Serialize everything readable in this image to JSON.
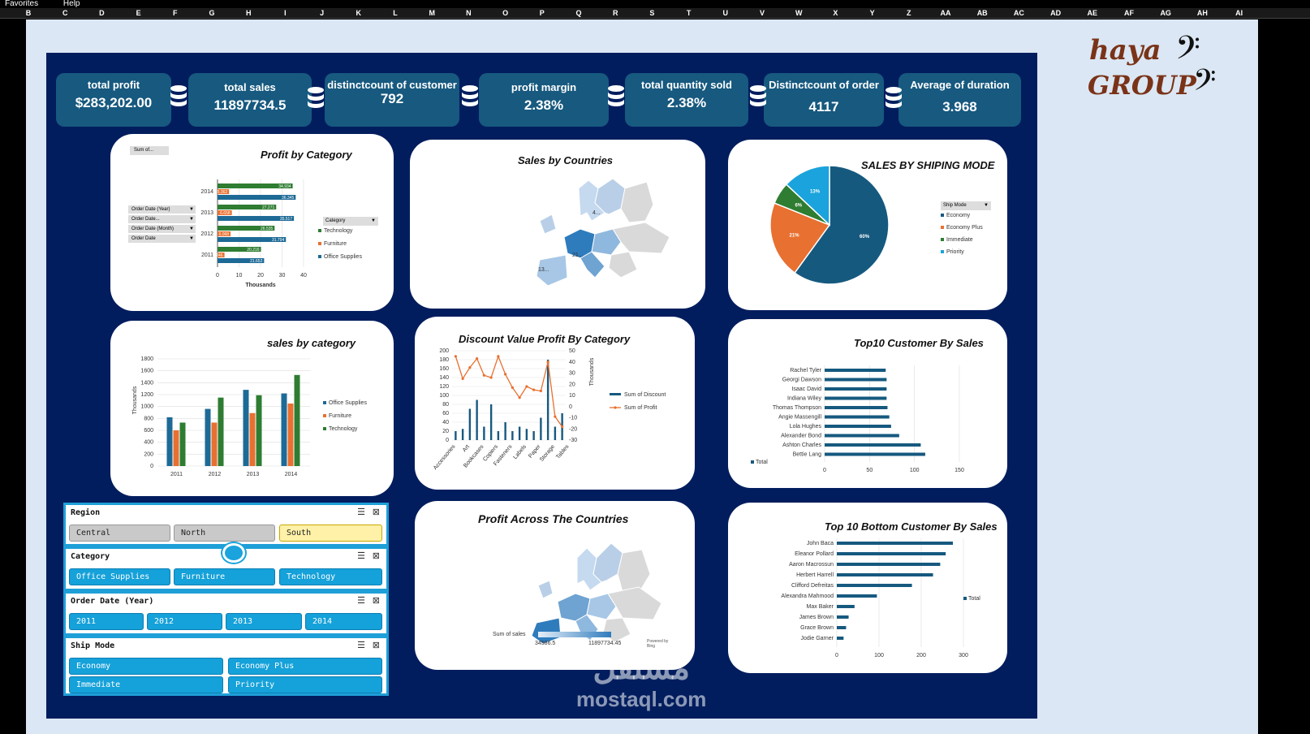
{
  "menu": {
    "favorites": "Favorites",
    "help": "Help"
  },
  "columns": [
    "B",
    "C",
    "D",
    "E",
    "F",
    "G",
    "H",
    "I",
    "J",
    "K",
    "L",
    "M",
    "N",
    "O",
    "P",
    "Q",
    "R",
    "S",
    "T",
    "U",
    "V",
    "W",
    "X",
    "Y",
    "Z",
    "AA",
    "AB",
    "AC",
    "AD",
    "AE",
    "AF",
    "AG",
    "AH",
    "AI"
  ],
  "kpis": [
    {
      "label": "total profit",
      "value": "$283,202.00"
    },
    {
      "label": "total sales",
      "value": "11897734.5"
    },
    {
      "label": "distinctcount of customer",
      "value": "792"
    },
    {
      "label": "profit margin",
      "value": "2.38%"
    },
    {
      "label": "total quantity sold",
      "value": "2.38%"
    },
    {
      "label": "Distinctcount of order",
      "value": "4117"
    },
    {
      "label": "Average of duration",
      "value": "3.968"
    }
  ],
  "logo": {
    "line1": "haya",
    "line2": "GROUP"
  },
  "cards": {
    "profit_by_category": {
      "title": "Profit by Category",
      "value_field": "Sum of...",
      "filters": [
        "Order Date (Year)",
        "Order Date...",
        "Order Date (Month)",
        "Order Date"
      ],
      "legend_title": "Category",
      "xlabel": "Thousands"
    },
    "sales_by_countries": {
      "title": "Sales by Countries",
      "labels": [
        "4...",
        "21...",
        "13..."
      ]
    },
    "shipping_mode": {
      "title": "SALES BY SHIPING MODE",
      "legend_title": "Ship Mode"
    },
    "sales_by_category": {
      "title": "sales by category",
      "ylabel": "Thousands"
    },
    "discount_profit": {
      "title": "Discount Value Profit By Category",
      "y2label": "Thousands"
    },
    "top10": {
      "title": "Top10 Customer By Sales",
      "legend": "Total"
    },
    "profit_countries": {
      "title": "Profit Across The Countries",
      "legend_title": "Sum of sales",
      "min": "34586.5",
      "max": "11897734.45",
      "credit": "Powered by Bing"
    },
    "bottom10": {
      "title": "Top 10 Bottom Customer By Sales",
      "legend": "Total"
    }
  },
  "slicers": {
    "region": {
      "title": "Region",
      "items": [
        "Central",
        "North",
        "South"
      ]
    },
    "category": {
      "title": "Category",
      "items": [
        "Office Supplies",
        "Furniture",
        "Technology"
      ]
    },
    "year": {
      "title": "Order Date (Year)",
      "items": [
        "2011",
        "2012",
        "2013",
        "2014"
      ]
    },
    "shipmode": {
      "title": "Ship Mode",
      "items": [
        "Economy",
        "Economy Plus",
        "Immediate",
        "Priority"
      ]
    }
  },
  "watermark": "mostaql.com",
  "colors": {
    "technology": "#2e7d32",
    "furniture": "#e87030",
    "office": "#1d6a96",
    "priority": "#1aa3dc"
  },
  "chart_data": [
    {
      "id": "profit_by_category",
      "type": "bar",
      "orientation": "horizontal",
      "categories": [
        "2014",
        "2013",
        "2012",
        "2011"
      ],
      "series": [
        {
          "name": "Technology",
          "values": [
            34.934,
            27.271,
            26.535,
            20.216
          ]
        },
        {
          "name": "Furniture",
          "values": [
            5.362,
            6.658,
            6.068,
            3.246
          ]
        },
        {
          "name": "Office Supplies",
          "values": [
            36.345,
            35.517,
            31.794,
            21.652
          ]
        }
      ],
      "xticks": [
        "0",
        "10",
        "20",
        "30",
        "40"
      ],
      "xlim": [
        0,
        40
      ],
      "value_labels": [
        [
          "34.934",
          "5.362",
          "36.345"
        ],
        [
          "27.271",
          "6.658",
          "35.517"
        ],
        [
          "26.535",
          "6.068",
          "31.794"
        ],
        [
          "20.216",
          "3.246",
          "21.652"
        ]
      ]
    },
    {
      "id": "shipping_mode",
      "type": "pie",
      "labels": [
        "Economy",
        "Economy Plus",
        "Immediate",
        "Priority"
      ],
      "values": [
        60,
        21,
        6,
        13
      ],
      "data_labels": [
        "60%",
        "21%",
        "6%",
        "13%"
      ]
    },
    {
      "id": "sales_by_category",
      "type": "bar",
      "categories": [
        "2011",
        "2012",
        "2013",
        "2014"
      ],
      "series": [
        {
          "name": "Office Supplies",
          "values": [
            820,
            960,
            1280,
            1220
          ]
        },
        {
          "name": "Furniture",
          "values": [
            600,
            730,
            890,
            1050
          ]
        },
        {
          "name": "Technology",
          "values": [
            730,
            1150,
            1190,
            1530
          ]
        }
      ],
      "yticks": [
        "0",
        "200",
        "400",
        "600",
        "800",
        "1000",
        "1200",
        "1400",
        "1600",
        "1800"
      ],
      "ylim": [
        0,
        1800
      ]
    },
    {
      "id": "discount_profit",
      "type": "bar",
      "categories": [
        "Accessories",
        "Art",
        "Binders",
        "Bookcases",
        "Chairs",
        "Copiers",
        "Envelopes",
        "Fasteners",
        "Furnishings",
        "Labels",
        "Machines",
        "Paper",
        "Phones",
        "Storage",
        "Supplies",
        "Tables"
      ],
      "series": [
        {
          "name": "Sum of Discount",
          "values": [
            20,
            25,
            70,
            90,
            30,
            80,
            20,
            40,
            20,
            30,
            25,
            20,
            50,
            180,
            30,
            60
          ]
        },
        {
          "name": "Sum of Profit",
          "values": [
            45,
            25,
            35,
            43,
            28,
            26,
            45,
            29,
            17,
            8,
            18,
            15,
            14,
            40,
            -9,
            -18
          ]
        }
      ],
      "yticks": [
        "0",
        "20",
        "40",
        "60",
        "80",
        "100",
        "120",
        "140",
        "160",
        "180",
        "200"
      ],
      "y2ticks": [
        "-30",
        "-20",
        "-10",
        "0",
        "10",
        "20",
        "30",
        "40",
        "50"
      ],
      "ylim": [
        0,
        200
      ],
      "y2lim": [
        -30,
        50
      ],
      "xtick_labels": [
        "Accessories",
        "Art",
        "Bookcases",
        "Copiers",
        "Fasteners",
        "Labels",
        "Paper",
        "Storage",
        "Tables"
      ]
    },
    {
      "id": "top10",
      "type": "bar",
      "orientation": "horizontal",
      "categories": [
        "Rachel Tyler",
        "Georgi Dawson",
        "Isaac David",
        "Indiana Wiley",
        "Thomas Thompson",
        "Angie Massengill",
        "Lola Hughes",
        "Alexander Bond",
        "Ashton Charles",
        "Bettie Lang"
      ],
      "values": [
        68,
        69,
        69,
        69,
        70,
        72,
        74,
        83,
        107,
        112
      ],
      "xticks": [
        "0",
        "50",
        "100",
        "150"
      ],
      "xlim": [
        0,
        150
      ]
    },
    {
      "id": "bottom10",
      "type": "bar",
      "orientation": "horizontal",
      "categories": [
        "John Baca",
        "Eleanor Pollard",
        "Aaron Macrossun",
        "Herbert Harrell",
        "Clifford Defreitas",
        "Alexandra Mahmood",
        "Max Baker",
        "James Brown",
        "Grace Brown",
        "Jodie Garner"
      ],
      "values": [
        275,
        258,
        245,
        228,
        178,
        95,
        42,
        28,
        22,
        16
      ],
      "xticks": [
        "0",
        "100",
        "200",
        "300"
      ],
      "xlim": [
        0,
        300
      ]
    }
  ]
}
